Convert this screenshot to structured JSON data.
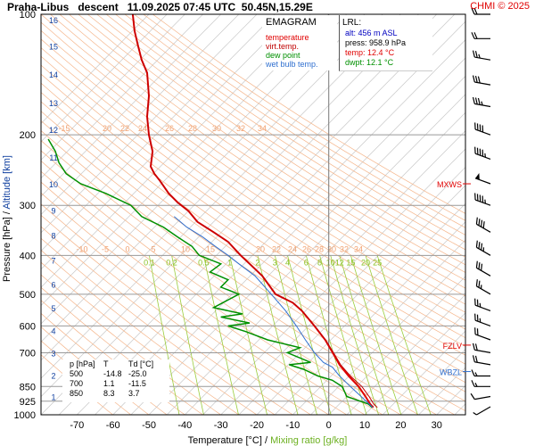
{
  "header": {
    "title": "Praha-Libus   descent   11.09.2025 07:45 UTC  50.45N,15.29E",
    "copyright": "CHMI © 2025"
  },
  "legend": {
    "heading": "EMAGRAM",
    "items": [
      {
        "label": "temperature",
        "color": "#e00000"
      },
      {
        "label": "virt.temp.",
        "color": "#c00000"
      },
      {
        "label": "dew point",
        "color": "#009000"
      },
      {
        "label": "wet bulb temp.",
        "color": "#3070d0"
      }
    ]
  },
  "lrl_box": {
    "heading": "LRL:",
    "lines": [
      {
        "text": "alt: 456 m ASL",
        "color": "#0000c0"
      },
      {
        "text": "press: 958.9 hPa",
        "color": "#000000"
      },
      {
        "text": "temp: 12.4 °C",
        "color": "#e00000"
      },
      {
        "text": "dwpt: 12.1 °C",
        "color": "#009000"
      }
    ]
  },
  "summary_table": {
    "headers": [
      "p [hPa]",
      "T",
      "Td [°C]"
    ],
    "rows": [
      [
        "500",
        "-14.8",
        "-25.0"
      ],
      [
        "700",
        "1.1",
        "-11.5"
      ],
      [
        "850",
        "8.3",
        "3.7"
      ]
    ]
  },
  "level_markers": [
    {
      "label": "MXWS",
      "p": 265,
      "color": "#e00000"
    },
    {
      "label": "FZLV",
      "p": 670,
      "color": "#e00000"
    },
    {
      "label": "WBZL",
      "p": 780,
      "color": "#3070d0"
    }
  ],
  "chart_data": {
    "type": "line",
    "title": "Praha-Libus   descent   11.09.2025 07:45 UTC  50.45N,15.29E",
    "xlabel": "Temperature [°C]",
    "xlabel_secondary": "Mixing ratio [g/kg]",
    "xlabel_separator": "/",
    "ylabel": "Pressure [hPa]",
    "ylabel_secondary": "Altitude [km]",
    "ylabel_separator": "/",
    "x_scale": "linear",
    "y_scale": "log",
    "xlim": [
      -80,
      38
    ],
    "ylim": [
      1000,
      100
    ],
    "x_ticks": [
      -70,
      -60,
      -50,
      -40,
      -30,
      -20,
      -10,
      0,
      10,
      20,
      30
    ],
    "y_ticks": [
      100,
      200,
      300,
      400,
      500,
      600,
      700,
      850,
      925,
      1000
    ],
    "altitude_ticks_km": [
      {
        "km": "1",
        "p": 900
      },
      {
        "km": "2",
        "p": 795
      },
      {
        "km": "3",
        "p": 701
      },
      {
        "km": "4",
        "p": 616
      },
      {
        "km": "5",
        "p": 540
      },
      {
        "km": "6",
        "p": 472
      },
      {
        "km": "7",
        "p": 411
      },
      {
        "km": "8",
        "p": 356
      },
      {
        "km": "9",
        "p": 308
      },
      {
        "km": "10",
        "p": 265
      },
      {
        "km": "11",
        "p": 227
      },
      {
        "km": "12",
        "p": 194
      },
      {
        "km": "13",
        "p": 166
      },
      {
        "km": "14",
        "p": 141
      },
      {
        "km": "15",
        "p": 120
      },
      {
        "km": "16",
        "p": 103
      }
    ],
    "isotherm_labels_200": [
      "-15",
      "20",
      "22",
      "24",
      "26",
      "28",
      "30",
      "32",
      "34"
    ],
    "isotherm_labels_400": [
      "-10",
      "-5",
      "0",
      "5",
      "10",
      "15",
      "20",
      "22",
      "24",
      "26",
      "28",
      "30",
      "32",
      "34"
    ],
    "mixing_ratio_labels": [
      "0.1",
      "0.2",
      "0.5",
      "1",
      "2",
      "3",
      "4",
      "6",
      "8",
      "10",
      "12",
      "15",
      "20",
      "25"
    ],
    "series": [
      {
        "name": "temperature",
        "color": "#e00000",
        "points": [
          [
            12.4,
            958.9
          ],
          [
            11.5,
            940
          ],
          [
            10.2,
            900
          ],
          [
            8.3,
            850
          ],
          [
            5.5,
            800
          ],
          [
            3.0,
            750
          ],
          [
            1.1,
            700
          ],
          [
            -1.0,
            650
          ],
          [
            -4.0,
            600
          ],
          [
            -7.5,
            550
          ],
          [
            -10.0,
            525
          ],
          [
            -14.8,
            500
          ],
          [
            -18.5,
            450
          ],
          [
            -22.0,
            420
          ],
          [
            -24.5,
            400
          ],
          [
            -28.0,
            370
          ],
          [
            -32.0,
            350
          ],
          [
            -36.5,
            330
          ],
          [
            -39.0,
            310
          ],
          [
            -42.0,
            295
          ],
          [
            -44.5,
            280
          ],
          [
            -47.0,
            260
          ],
          [
            -48.5,
            250
          ],
          [
            -49.5,
            240
          ],
          [
            -49.0,
            220
          ],
          [
            -50.0,
            200
          ],
          [
            -50.5,
            180
          ],
          [
            -50.0,
            160
          ],
          [
            -50.5,
            140
          ],
          [
            -52.0,
            130
          ],
          [
            -53.0,
            120
          ],
          [
            -54.0,
            110
          ],
          [
            -54.5,
            100
          ]
        ]
      },
      {
        "name": "virt.temp.",
        "color": "#c00000",
        "points": [
          [
            13.5,
            958.9
          ],
          [
            12.5,
            940
          ],
          [
            11.2,
            900
          ],
          [
            9.2,
            850
          ],
          [
            6.0,
            800
          ],
          [
            3.3,
            750
          ],
          [
            1.3,
            700
          ],
          [
            -0.9,
            650
          ],
          [
            -3.9,
            600
          ],
          [
            -7.4,
            550
          ],
          [
            -9.9,
            525
          ],
          [
            -14.7,
            500
          ],
          [
            -18.4,
            450
          ],
          [
            -22.0,
            420
          ],
          [
            -24.5,
            400
          ],
          [
            -28.0,
            370
          ],
          [
            -32.0,
            350
          ],
          [
            -36.5,
            330
          ],
          [
            -39.0,
            310
          ],
          [
            -42.0,
            295
          ],
          [
            -44.5,
            280
          ],
          [
            -47.0,
            260
          ],
          [
            -48.5,
            250
          ],
          [
            -49.5,
            240
          ],
          [
            -49.0,
            220
          ],
          [
            -50.0,
            200
          ],
          [
            -50.5,
            180
          ],
          [
            -50.0,
            160
          ],
          [
            -50.5,
            140
          ],
          [
            -52.0,
            130
          ],
          [
            -53.0,
            120
          ],
          [
            -54.0,
            110
          ],
          [
            -54.5,
            100
          ]
        ]
      },
      {
        "name": "dew point",
        "color": "#009000",
        "points": [
          [
            12.1,
            958.9
          ],
          [
            11.0,
            940
          ],
          [
            8.0,
            920
          ],
          [
            5.0,
            900
          ],
          [
            4.5,
            880
          ],
          [
            3.7,
            850
          ],
          [
            1.0,
            820
          ],
          [
            -3.0,
            800
          ],
          [
            -7.0,
            770
          ],
          [
            -11.0,
            750
          ],
          [
            -5.0,
            740
          ],
          [
            -11.5,
            700
          ],
          [
            -8.0,
            680
          ],
          [
            -17.0,
            650
          ],
          [
            -23.0,
            620
          ],
          [
            -28.0,
            600
          ],
          [
            -22.0,
            590
          ],
          [
            -30.0,
            570
          ],
          [
            -24.0,
            560
          ],
          [
            -32.0,
            540
          ],
          [
            -25.0,
            500
          ],
          [
            -30.0,
            480
          ],
          [
            -28.0,
            460
          ],
          [
            -33.0,
            440
          ],
          [
            -30.0,
            420
          ],
          [
            -36.0,
            400
          ],
          [
            -38.0,
            380
          ],
          [
            -42.0,
            360
          ],
          [
            -46.0,
            340
          ],
          [
            -52.0,
            320
          ],
          [
            -55.0,
            300
          ],
          [
            -62.0,
            280
          ],
          [
            -69.0,
            265
          ],
          [
            -73.0,
            250
          ],
          [
            -75.0,
            235
          ],
          [
            -76.0,
            220
          ],
          [
            -78.0,
            205
          ]
        ]
      },
      {
        "name": "wet bulb temp.",
        "color": "#3070d0",
        "points": [
          [
            12.2,
            958.9
          ],
          [
            11.2,
            940
          ],
          [
            9.0,
            900
          ],
          [
            6.0,
            850
          ],
          [
            3.0,
            800
          ],
          [
            1.0,
            760
          ],
          [
            -1.5,
            740
          ],
          [
            -4.0,
            700
          ],
          [
            -6.5,
            650
          ],
          [
            -9.0,
            600
          ],
          [
            -12.0,
            550
          ],
          [
            -16.0,
            500
          ],
          [
            -20.5,
            450
          ],
          [
            -25.0,
            420
          ],
          [
            -28.0,
            400
          ],
          [
            -31.5,
            380
          ],
          [
            -35.0,
            360
          ],
          [
            -39.5,
            340
          ],
          [
            -43.0,
            320
          ]
        ]
      }
    ],
    "wind_barbs": [
      {
        "p": 955,
        "dir_deg": 240,
        "speed_kt": 5
      },
      {
        "p": 900,
        "dir_deg": 260,
        "speed_kt": 10
      },
      {
        "p": 850,
        "dir_deg": 270,
        "speed_kt": 15
      },
      {
        "p": 800,
        "dir_deg": 270,
        "speed_kt": 15
      },
      {
        "p": 750,
        "dir_deg": 280,
        "speed_kt": 20
      },
      {
        "p": 700,
        "dir_deg": 280,
        "speed_kt": 20
      },
      {
        "p": 650,
        "dir_deg": 290,
        "speed_kt": 20
      },
      {
        "p": 600,
        "dir_deg": 290,
        "speed_kt": 25
      },
      {
        "p": 550,
        "dir_deg": 290,
        "speed_kt": 25
      },
      {
        "p": 500,
        "dir_deg": 300,
        "speed_kt": 25
      },
      {
        "p": 450,
        "dir_deg": 300,
        "speed_kt": 30
      },
      {
        "p": 400,
        "dir_deg": 300,
        "speed_kt": 35
      },
      {
        "p": 350,
        "dir_deg": 300,
        "speed_kt": 40
      },
      {
        "p": 300,
        "dir_deg": 290,
        "speed_kt": 45
      },
      {
        "p": 265,
        "dir_deg": 290,
        "speed_kt": 50
      },
      {
        "p": 230,
        "dir_deg": 290,
        "speed_kt": 45
      },
      {
        "p": 200,
        "dir_deg": 290,
        "speed_kt": 40
      },
      {
        "p": 170,
        "dir_deg": 280,
        "speed_kt": 35
      },
      {
        "p": 150,
        "dir_deg": 280,
        "speed_kt": 30
      },
      {
        "p": 130,
        "dir_deg": 280,
        "speed_kt": 25
      },
      {
        "p": 115,
        "dir_deg": 270,
        "speed_kt": 20
      },
      {
        "p": 100,
        "dir_deg": 270,
        "speed_kt": 20
      }
    ],
    "grid": true
  }
}
